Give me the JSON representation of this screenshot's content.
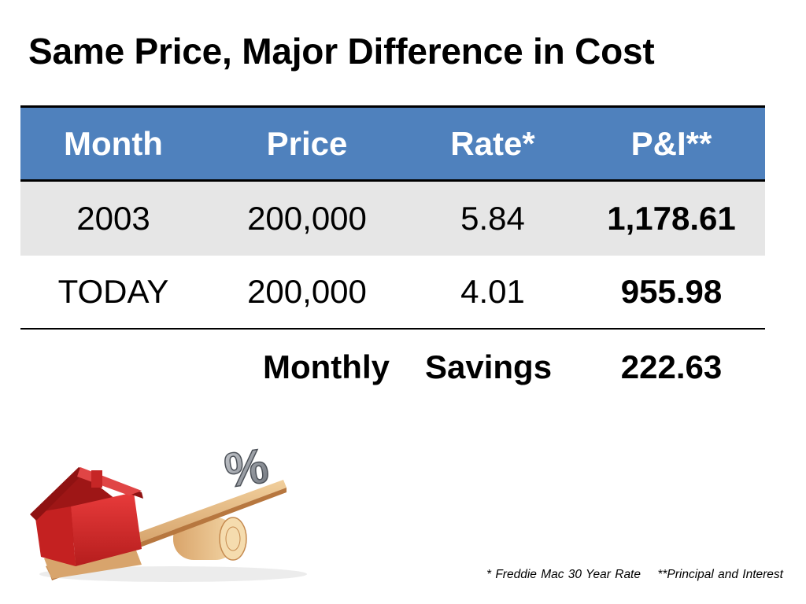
{
  "slide": {
    "title": "Same Price, Major Difference in Cost"
  },
  "table": {
    "headers": [
      "Month",
      "Price",
      "Rate*",
      "P&I**"
    ],
    "rows": [
      [
        "2003",
        "200,000",
        "5.84",
        "1,178.61"
      ],
      [
        "TODAY",
        "200,000",
        "4.01",
        "955.98"
      ]
    ],
    "savings": {
      "label_1": "Monthly",
      "label_2": "Savings",
      "amount": "222.63"
    }
  },
  "illustration": {
    "percent_symbol": "%",
    "icons": [
      "house-icon",
      "seesaw-icon",
      "percent-icon"
    ]
  },
  "footnotes": {
    "rate_note": "* Freddie Mac 30 Year Rate",
    "pi_note": "**Principal and Interest"
  },
  "colors": {
    "header_bg": "#4f81bd",
    "stripe_bg": "#e6e6e6",
    "house_red": "#d62828",
    "wood": "#e0b07a"
  }
}
